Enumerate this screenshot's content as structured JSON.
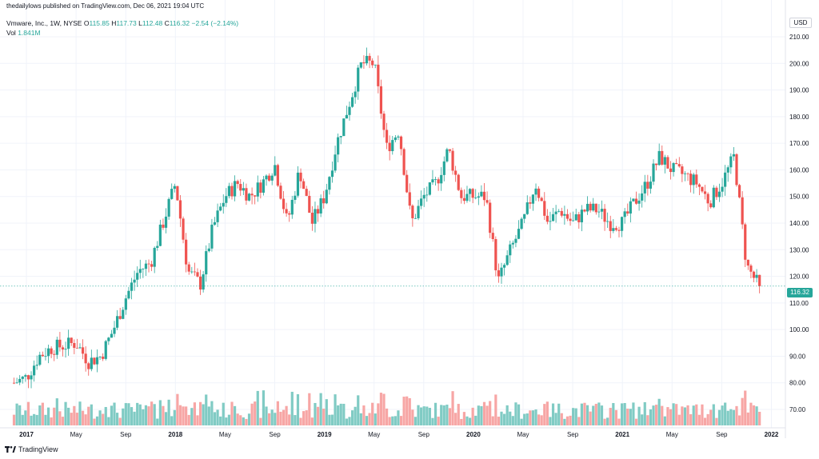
{
  "header": {
    "published": "thedailylows published on TradingView.com, Dec 06, 2021 19:04 UTC",
    "symbol": "Vmware, Inc., 1W, NYSE",
    "open_label": "O",
    "open": "115.85",
    "high_label": "H",
    "high": "117.73",
    "low_label": "L",
    "low": "112.48",
    "close_label": "C",
    "close": "116.32",
    "change": "−2.54 (−2.14%)",
    "vol_label": "Vol",
    "vol": "1.841M"
  },
  "price_axis": {
    "currency": "USD",
    "last_price": "116.32"
  },
  "footer": {
    "brand": "TradingView"
  },
  "colors": {
    "up": "#26a69a",
    "down": "#ef5350",
    "up_vol": "#80cbc4",
    "down_vol": "#f7a6a5",
    "grid": "#f0f3fa"
  },
  "chart_data": {
    "type": "candlestick",
    "title": "Vmware, Inc., 1W, NYSE",
    "interval": "1W",
    "y_axis": {
      "range": [
        64,
        216
      ],
      "ticks": [
        70,
        80,
        90,
        100,
        110,
        120,
        130,
        140,
        150,
        160,
        170,
        180,
        190,
        200,
        210
      ]
    },
    "x_axis": {
      "range": [
        "2016-11",
        "2022-01"
      ],
      "ticks": [
        "2017",
        "May",
        "Sep",
        "2018",
        "May",
        "Sep",
        "2019",
        "May",
        "Sep",
        "2020",
        "May",
        "Sep",
        "2021",
        "May",
        "Sep",
        "2022"
      ]
    },
    "last_price": 116.32,
    "volume_series_max": "approx. 6.5M",
    "close_path": [
      [
        "2016-12",
        80
      ],
      [
        "2017-01",
        82
      ],
      [
        "2017-02",
        90
      ],
      [
        "2017-03",
        93
      ],
      [
        "2017-04",
        94
      ],
      [
        "2017-05",
        95
      ],
      [
        "2017-06",
        88
      ],
      [
        "2017-07",
        90
      ],
      [
        "2017-08",
        100
      ],
      [
        "2017-09",
        112
      ],
      [
        "2017-10",
        122
      ],
      [
        "2017-11",
        125
      ],
      [
        "2017-12",
        140
      ],
      [
        "2018-01",
        155
      ],
      [
        "2018-02",
        122
      ],
      [
        "2018-03",
        117
      ],
      [
        "2018-04",
        138
      ],
      [
        "2018-05",
        150
      ],
      [
        "2018-06",
        155
      ],
      [
        "2018-07",
        150
      ],
      [
        "2018-08",
        155
      ],
      [
        "2018-09",
        162
      ],
      [
        "2018-10",
        140
      ],
      [
        "2018-11",
        160
      ],
      [
        "2018-12",
        140
      ],
      [
        "2019-01",
        150
      ],
      [
        "2019-02",
        170
      ],
      [
        "2019-03",
        185
      ],
      [
        "2019-04",
        200
      ],
      [
        "2019-05",
        200
      ],
      [
        "2019-06",
        168
      ],
      [
        "2019-07",
        175
      ],
      [
        "2019-08",
        140
      ],
      [
        "2019-09",
        150
      ],
      [
        "2019-10",
        155
      ],
      [
        "2019-11",
        168
      ],
      [
        "2019-12",
        150
      ],
      [
        "2020-01",
        150
      ],
      [
        "2020-02",
        150
      ],
      [
        "2020-03",
        118
      ],
      [
        "2020-04",
        130
      ],
      [
        "2020-05",
        140
      ],
      [
        "2020-06",
        155
      ],
      [
        "2020-07",
        140
      ],
      [
        "2020-08",
        145
      ],
      [
        "2020-09",
        140
      ],
      [
        "2020-10",
        145
      ],
      [
        "2020-11",
        145
      ],
      [
        "2020-12",
        140
      ],
      [
        "2021-01",
        140
      ],
      [
        "2021-02",
        148
      ],
      [
        "2021-03",
        155
      ],
      [
        "2021-04",
        165
      ],
      [
        "2021-05",
        160
      ],
      [
        "2021-06",
        158
      ],
      [
        "2021-07",
        155
      ],
      [
        "2021-08",
        148
      ],
      [
        "2021-09",
        155
      ],
      [
        "2021-10",
        165
      ],
      [
        "2021-11",
        124
      ],
      [
        "2021-12",
        116.32
      ]
    ]
  }
}
